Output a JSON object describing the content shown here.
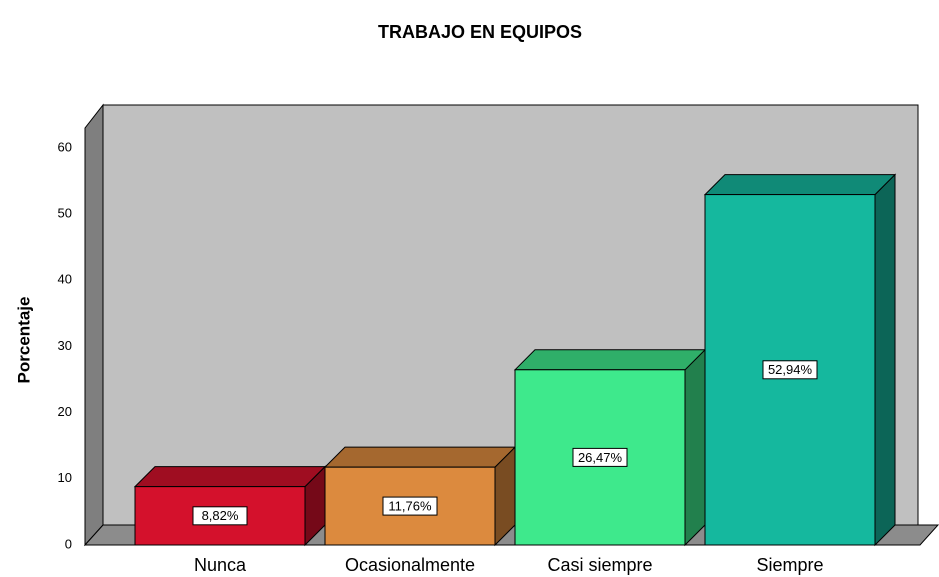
{
  "chart_data": {
    "type": "bar3d",
    "title": "TRABAJO EN EQUIPOS",
    "ylabel": "Porcentaje",
    "categories": [
      "Nunca",
      "Ocasionalmente",
      "Casi siempre",
      "Siempre"
    ],
    "values": [
      8.82,
      11.76,
      26.47,
      52.94
    ],
    "value_labels": [
      "8,82%",
      "11,76%",
      "26,47%",
      "52,94%"
    ],
    "colors": [
      "#d4112c",
      "#dc8a3e",
      "#3ee98c",
      "#15b89e"
    ],
    "ylim": [
      0,
      63
    ],
    "yticks": [
      0,
      10,
      20,
      30,
      40,
      50,
      60
    ]
  }
}
